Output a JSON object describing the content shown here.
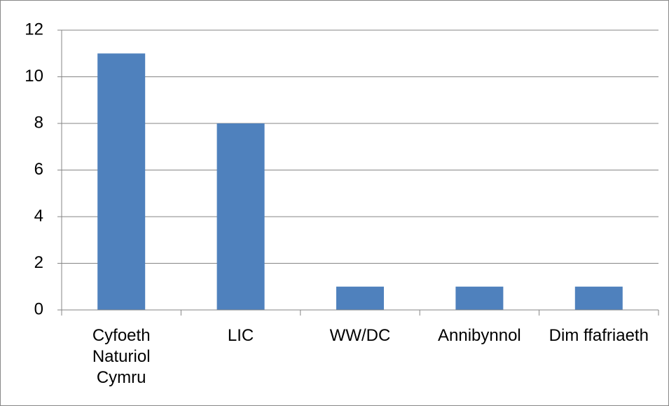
{
  "chart_data": {
    "type": "bar",
    "categories": [
      "Cyfoeth Naturiol Cymru",
      "LIC",
      "WW/DC",
      "Annibynnol",
      "Dim ffafriaeth"
    ],
    "values": [
      11,
      8,
      1,
      1,
      1
    ],
    "color": "#4f81bd",
    "ylim": [
      0,
      12
    ],
    "yticks": [
      0,
      2,
      4,
      6,
      8,
      10,
      12
    ],
    "grid": true
  }
}
